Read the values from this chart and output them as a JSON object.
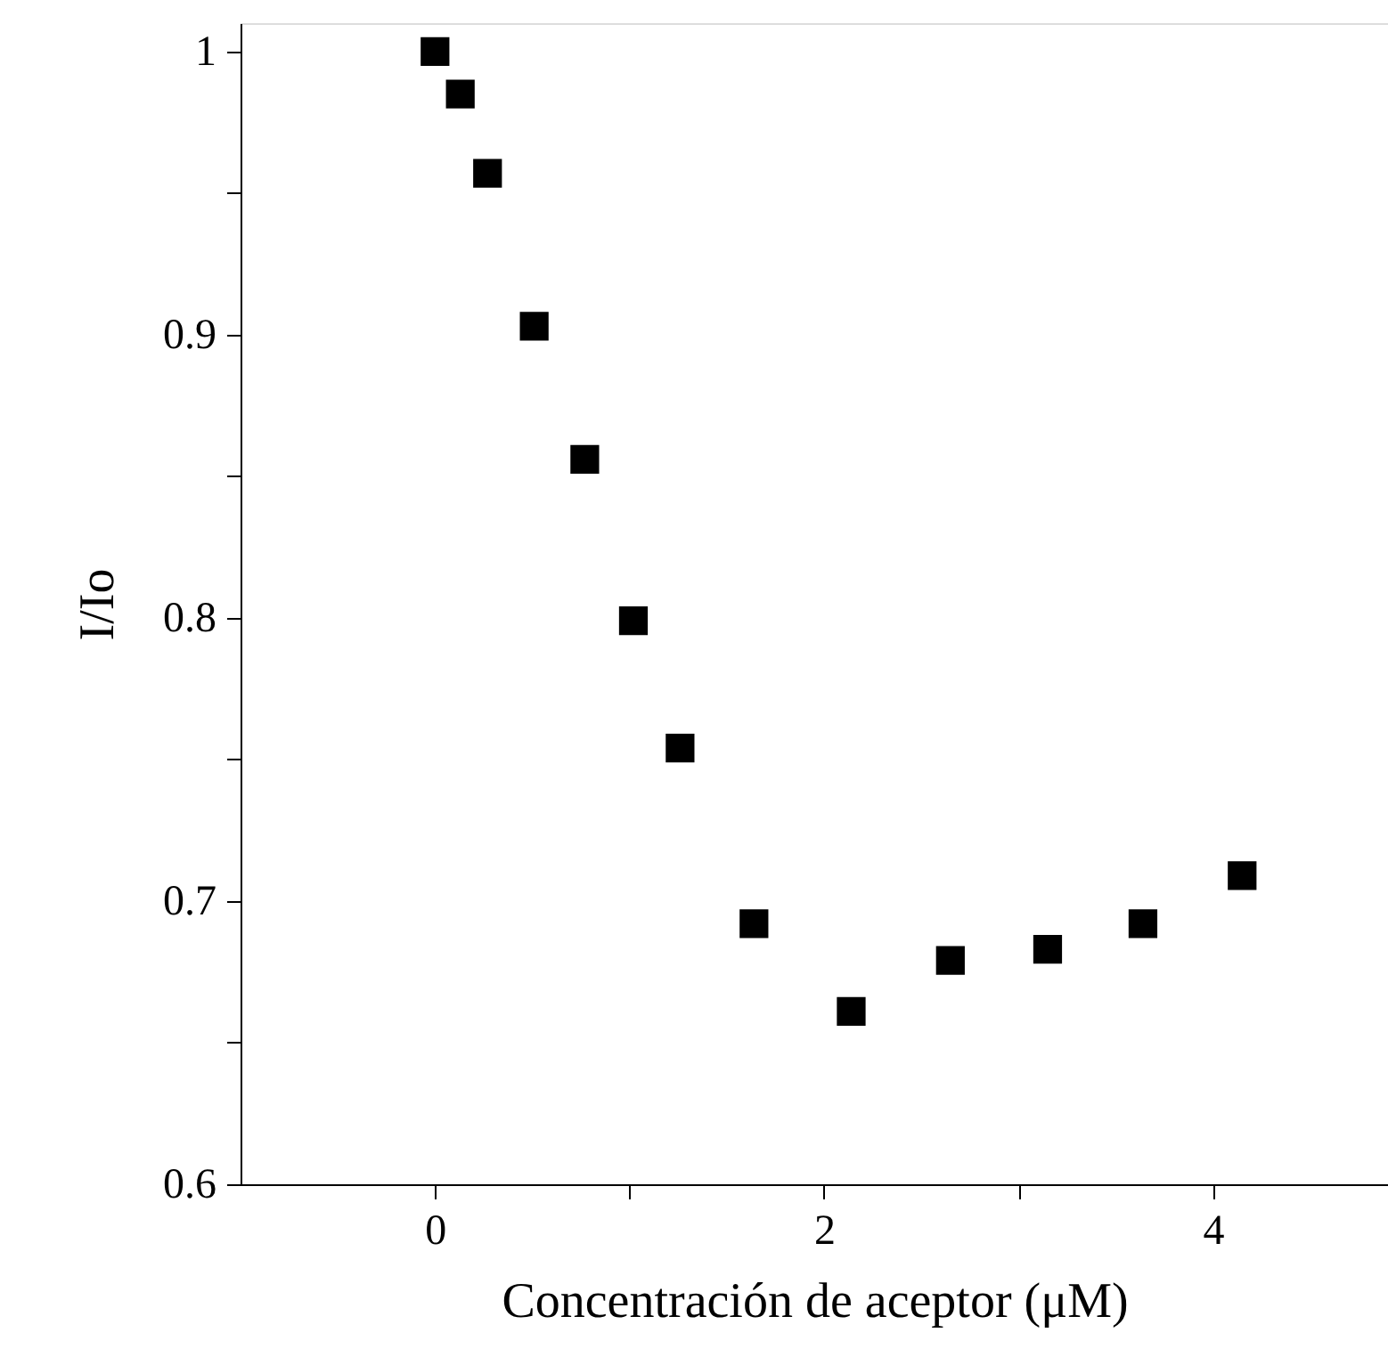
{
  "chart_data": {
    "type": "scatter",
    "xlabel": "Concentración de aceptor (μM)",
    "ylabel": "I/Io",
    "x": [
      0,
      0.13,
      0.27,
      0.51,
      0.77,
      1.02,
      1.26,
      1.64,
      2.14,
      2.65,
      3.15,
      3.64,
      4.15
    ],
    "series": [
      {
        "color": "#000000",
        "values": [
          1.0,
          0.985,
          0.957,
          0.903,
          0.856,
          0.799,
          0.754,
          0.692,
          0.661,
          0.679,
          0.683,
          0.692,
          0.709
        ]
      }
    ],
    "xlim": [
      -1,
      4.9
    ],
    "ylim": [
      0.6,
      1.01
    ],
    "xticks": [
      0,
      {
        "value": 1,
        "label": null
      },
      2,
      {
        "value": 3,
        "label": null
      },
      4
    ],
    "yticks": [
      0.6,
      {
        "value": 0.65,
        "label": null
      },
      0.7,
      {
        "value": 0.75,
        "label": null
      },
      0.8,
      {
        "value": 0.85,
        "label": null
      },
      0.9,
      {
        "value": 0.95,
        "label": null
      },
      1
    ],
    "marker": "square",
    "grid": false,
    "legend": false
  }
}
